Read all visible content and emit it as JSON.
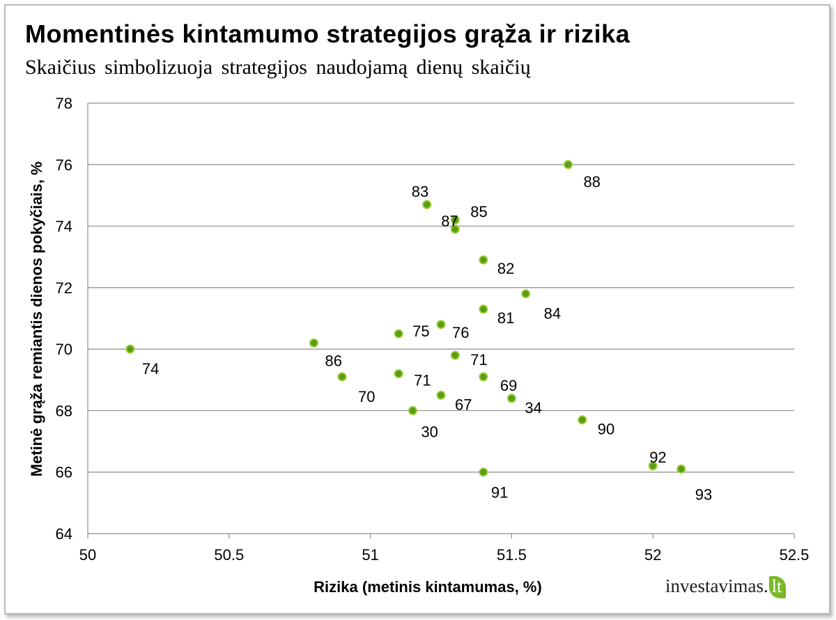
{
  "chart_data": {
    "type": "scatter",
    "title": "Momentinės kintamumo strategijos grąža ir rizika",
    "subtitle": "Skaičius simbolizuoja strategijos naudojamą dienų skaičių",
    "xlabel": "Rizika (metinis kintamumas, %)",
    "ylabel": "Metinė grąža remiantis dienos pokyčiais, %",
    "xlim": [
      50,
      52.5
    ],
    "ylim": [
      64,
      78
    ],
    "x_ticks": [
      "50",
      "50.5",
      "51",
      "51.5",
      "52",
      "52.5"
    ],
    "y_ticks": [
      "64",
      "66",
      "68",
      "70",
      "72",
      "74",
      "76",
      "78"
    ],
    "grid": "horizontal",
    "marker_color": "#5b9c16",
    "marker_edge_color": "#9acd32",
    "gridline_color": "#8c8c8c",
    "points": [
      {
        "x": 51.7,
        "y": 76.0,
        "label": "88"
      },
      {
        "x": 51.2,
        "y": 74.7,
        "label": "83"
      },
      {
        "x": 51.3,
        "y": 74.2,
        "label": "85"
      },
      {
        "x": 51.3,
        "y": 73.9,
        "label": "87"
      },
      {
        "x": 51.4,
        "y": 72.9,
        "label": "82"
      },
      {
        "x": 51.55,
        "y": 71.8,
        "label": "84"
      },
      {
        "x": 51.4,
        "y": 71.3,
        "label": "81"
      },
      {
        "x": 51.25,
        "y": 70.8,
        "label": "76"
      },
      {
        "x": 51.1,
        "y": 70.5,
        "label": "75"
      },
      {
        "x": 50.15,
        "y": 70.0,
        "label": "74"
      },
      {
        "x": 50.8,
        "y": 70.2,
        "label": "86"
      },
      {
        "x": 51.3,
        "y": 69.8,
        "label": "71"
      },
      {
        "x": 51.1,
        "y": 69.2,
        "label": "71"
      },
      {
        "x": 50.9,
        "y": 69.1,
        "label": "70"
      },
      {
        "x": 51.4,
        "y": 69.1,
        "label": "69"
      },
      {
        "x": 51.25,
        "y": 68.5,
        "label": "67"
      },
      {
        "x": 51.5,
        "y": 68.4,
        "label": "34"
      },
      {
        "x": 51.15,
        "y": 68.0,
        "label": "30"
      },
      {
        "x": 51.75,
        "y": 67.7,
        "label": "90"
      },
      {
        "x": 52.0,
        "y": 66.2,
        "label": "92"
      },
      {
        "x": 52.1,
        "y": 66.1,
        "label": "93"
      },
      {
        "x": 51.4,
        "y": 66.0,
        "label": "91"
      }
    ]
  },
  "brand": {
    "text": "investavimas.",
    "suffix": "lt",
    "leaf_color": "#7ab929"
  }
}
